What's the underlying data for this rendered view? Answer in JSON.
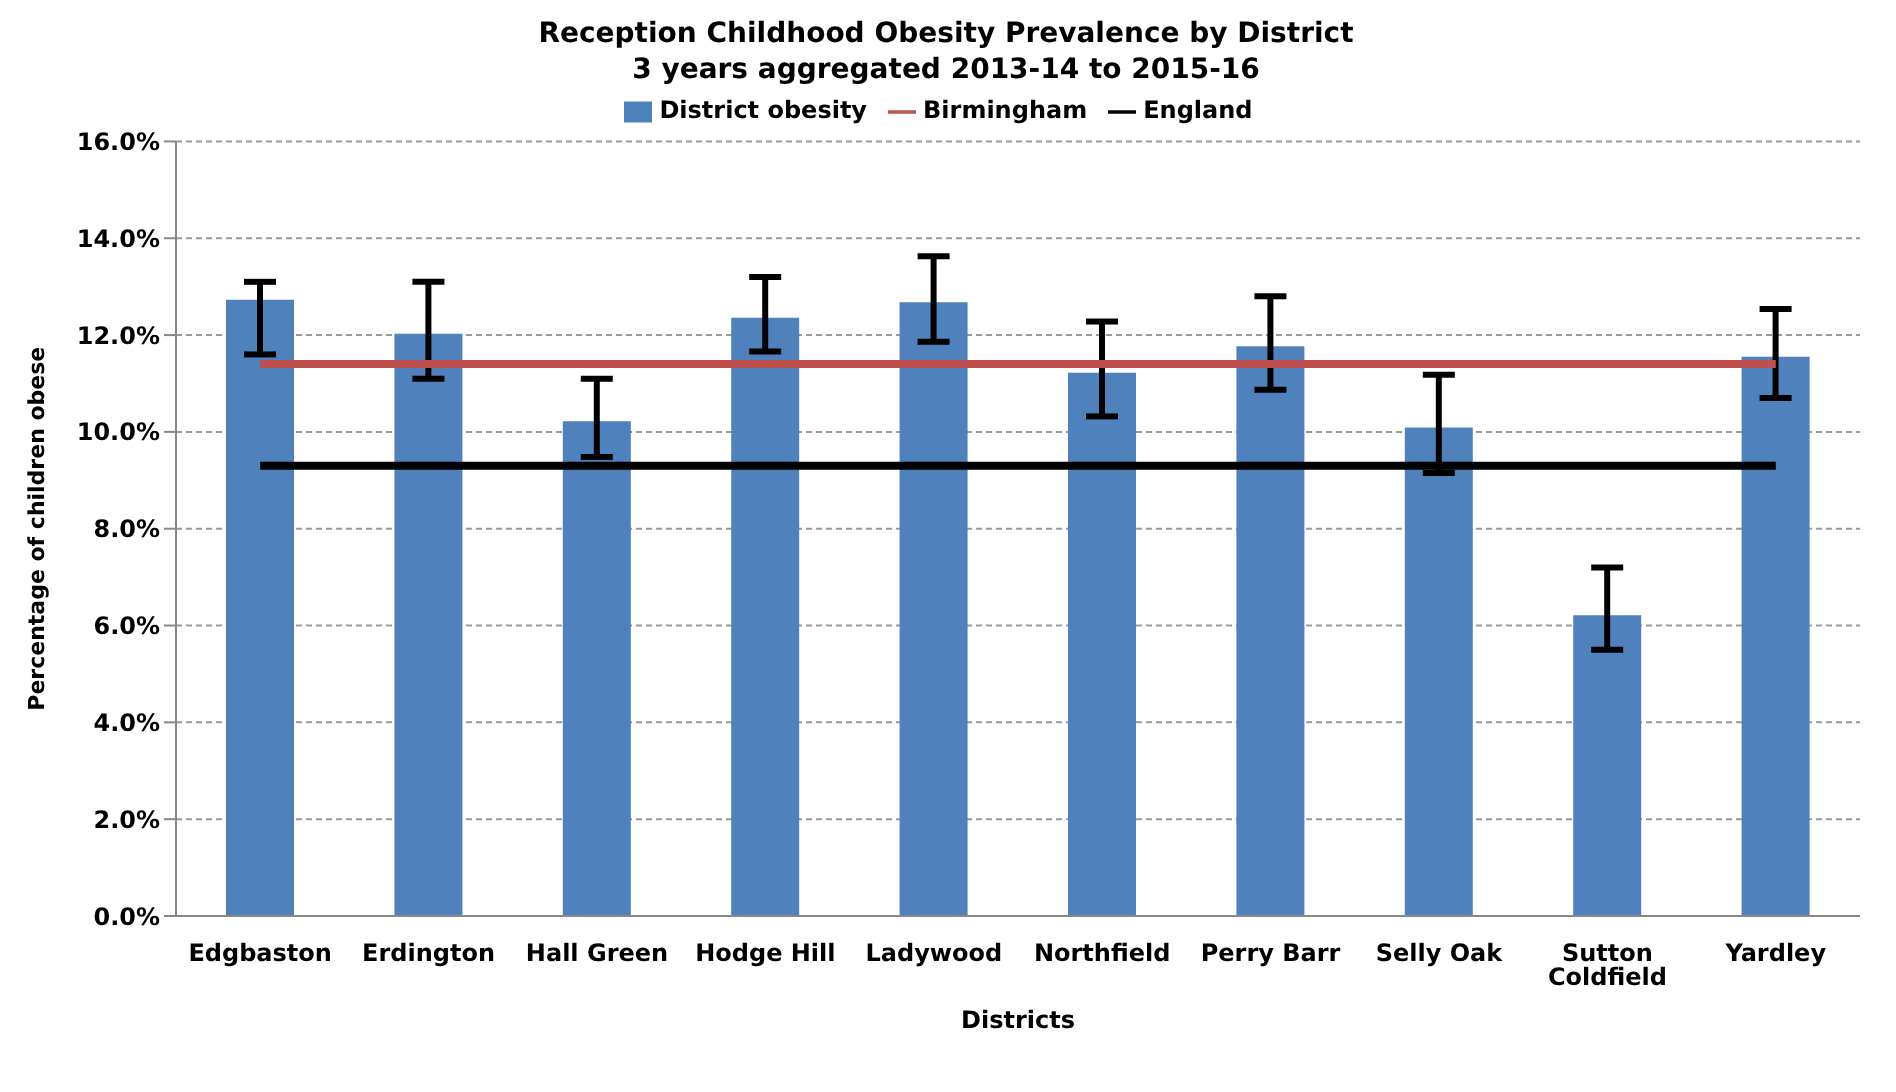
{
  "chart_data": {
    "type": "bar",
    "title": "Reception Childhood Obesity Prevalence by District",
    "subtitle": "3 years aggregated 2013-14 to 2015-16",
    "xlabel": "Districts",
    "ylabel": "Percentage of children obese",
    "categories": [
      "Edgbaston",
      "Erdington",
      "Hall Green",
      "Hodge Hill",
      "Ladywood",
      "Northfield",
      "Perry Barr",
      "Selly Oak",
      "Sutton Coldfield",
      "Yardley"
    ],
    "series": [
      {
        "name": "District obesity",
        "color": "#4f81bd",
        "values": [
          12.73,
          12.03,
          10.22,
          12.36,
          12.68,
          11.22,
          11.77,
          10.09,
          6.21,
          11.55
        ],
        "errors": [
          [
            11.6,
            13.1
          ],
          [
            11.1,
            13.1
          ],
          [
            9.48,
            11.1
          ],
          [
            11.66,
            13.2
          ],
          [
            11.86,
            13.63
          ],
          [
            10.32,
            12.28
          ],
          [
            10.87,
            12.8
          ],
          [
            9.15,
            11.18
          ],
          [
            5.5,
            7.2
          ],
          [
            10.7,
            12.54
          ]
        ]
      },
      {
        "name": "Birmingham",
        "type": "line",
        "color": "#c0504d",
        "values": [
          11.4,
          11.4,
          11.4,
          11.4,
          11.4,
          11.4,
          11.4,
          11.4,
          11.4,
          11.4
        ]
      },
      {
        "name": "England",
        "type": "line",
        "color": "#000000",
        "values": [
          9.3,
          9.3,
          9.3,
          9.3,
          9.3,
          9.3,
          9.3,
          9.3,
          9.3,
          9.3
        ]
      }
    ],
    "ylim": [
      0,
      16
    ],
    "yticks": [
      {
        "value": 0,
        "label": "0.0%"
      },
      {
        "value": 2,
        "label": "2.0%"
      },
      {
        "value": 4,
        "label": "4.0%"
      },
      {
        "value": 6,
        "label": "6.0%"
      },
      {
        "value": 8,
        "label": "8.0%"
      },
      {
        "value": 10,
        "label": "10.0%"
      },
      {
        "value": 12,
        "label": "12.0%"
      },
      {
        "value": 14,
        "label": "14.0%"
      },
      {
        "value": 16,
        "label": "16.0%"
      }
    ],
    "grid": "y",
    "legend": "top",
    "marker": "none",
    "line_style": "solid"
  }
}
